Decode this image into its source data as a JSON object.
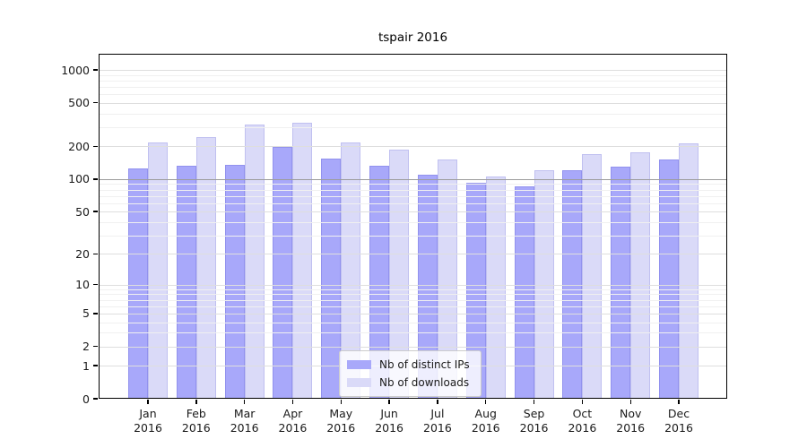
{
  "title": "tspair 2016",
  "colors": {
    "bar_distinct_ips": "#a8a8fa",
    "bar_downloads": "#dadaf8",
    "grid_major": "#dedede",
    "grid_minor": "#f0f0f0",
    "grid_emphasis": "#9c9c9c",
    "axis": "#000000",
    "text": "#1a1a1a"
  },
  "chart_data": {
    "type": "bar",
    "title": "tspair 2016",
    "categories": [
      "Jan",
      "Feb",
      "Mar",
      "Apr",
      "May",
      "Jun",
      "Jul",
      "Aug",
      "Sep",
      "Oct",
      "Nov",
      "Dec"
    ],
    "year_label": "2016",
    "series": [
      {
        "name": "Nb of distinct IPs",
        "values": [
          125,
          132,
          134,
          198,
          155,
          132,
          110,
          92,
          86,
          120,
          130,
          150
        ]
      },
      {
        "name": "Nb of downloads",
        "values": [
          217,
          243,
          315,
          328,
          217,
          188,
          150,
          105,
          120,
          170,
          176,
          212
        ]
      }
    ],
    "yscale": "log1p",
    "ylim": [
      0,
      1000
    ],
    "yticks": [
      0,
      1,
      2,
      5,
      10,
      20,
      50,
      100,
      200,
      500,
      1000
    ],
    "minor_gridlines": [
      3,
      4,
      6,
      7,
      8,
      9,
      30,
      40,
      60,
      70,
      80,
      90,
      300,
      400,
      600,
      700,
      800,
      900
    ],
    "emphasized_gridline": 100,
    "grid": true,
    "legend_position": "lower-center"
  }
}
